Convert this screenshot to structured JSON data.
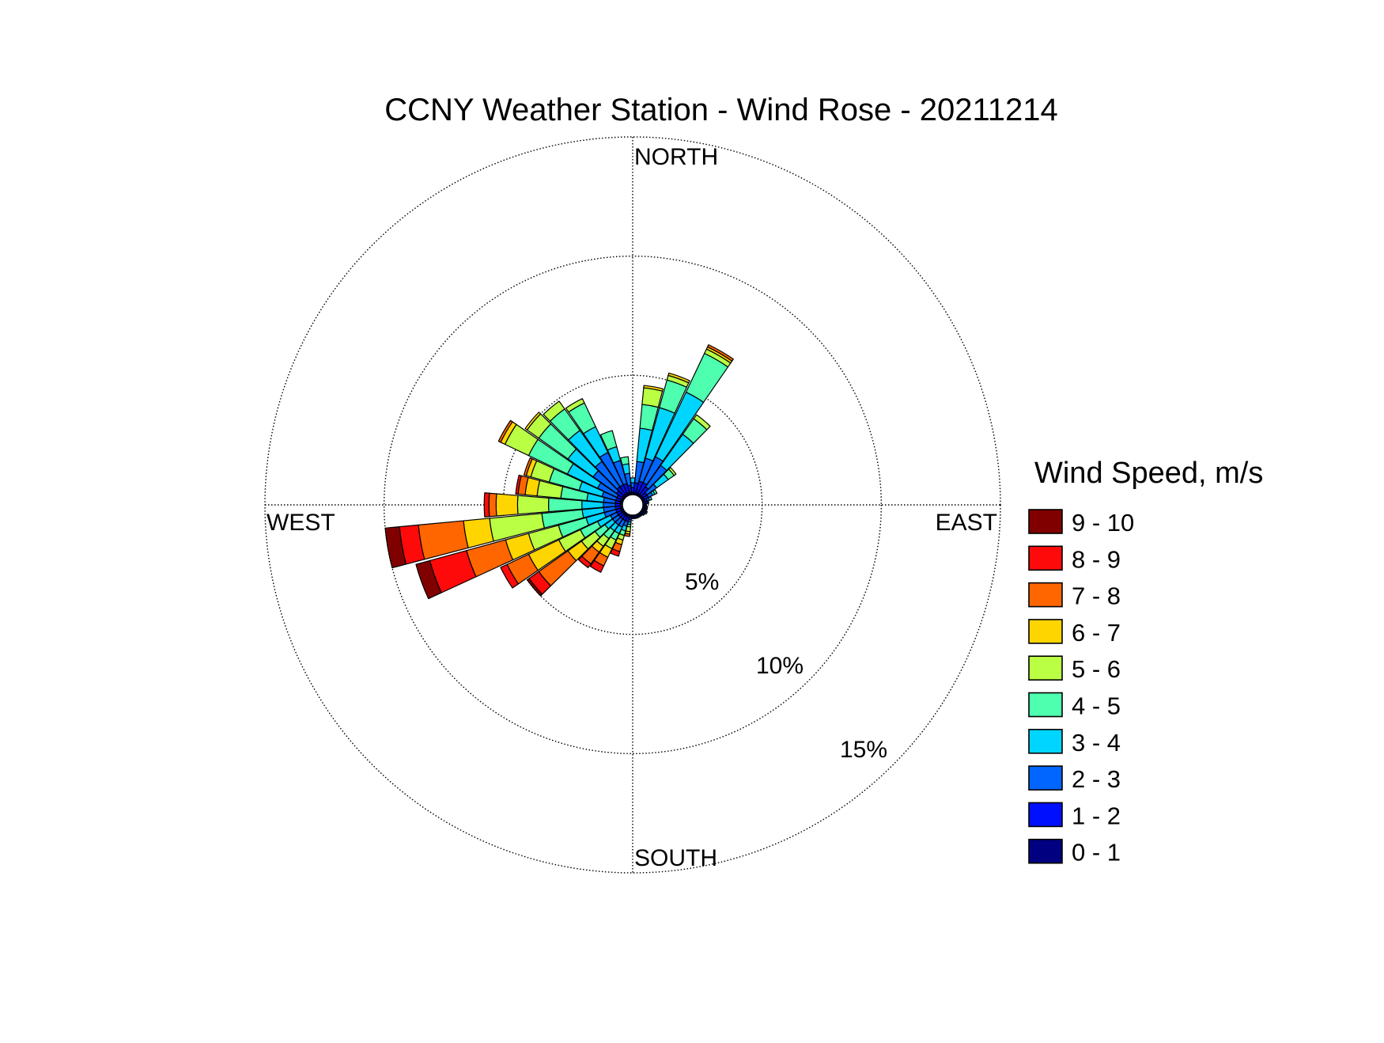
{
  "chart_data": {
    "type": "wind-rose",
    "title": "CCNY Weather Station - Wind Rose - 20211214",
    "directions": {
      "north": "NORTH",
      "south": "SOUTH",
      "east": "EAST",
      "west": "WEST"
    },
    "radial_ticks": [
      {
        "value": 5,
        "label": "5%"
      },
      {
        "value": 10,
        "label": "10%"
      },
      {
        "value": 15,
        "label": "15%"
      }
    ],
    "rmax": 15,
    "grid": true,
    "legend": {
      "title": "Wind Speed, m/s",
      "placement": "right",
      "bins": [
        {
          "label": "9 - 10",
          "color": "#800000"
        },
        {
          "label": "8 - 9",
          "color": "#ff0a0a"
        },
        {
          "label": "7 - 8",
          "color": "#ff6600"
        },
        {
          "label": "6 - 7",
          "color": "#ffd500"
        },
        {
          "label": "5 - 6",
          "color": "#bbff44"
        },
        {
          "label": "4 - 5",
          "color": "#4dffae"
        },
        {
          "label": "3 - 4",
          "color": "#00d5ff"
        },
        {
          "label": "2 - 3",
          "color": "#0066ff"
        },
        {
          "label": "1 - 2",
          "color": "#0010ff"
        },
        {
          "label": "0 - 1",
          "color": "#000080"
        }
      ]
    },
    "bin_order_inner_to_outer": [
      "0 - 1",
      "1 - 2",
      "2 - 3",
      "3 - 4",
      "4 - 5",
      "5 - 6",
      "6 - 7",
      "7 - 8",
      "8 - 9",
      "9 - 10"
    ],
    "sector_width_deg": 10,
    "sectors": [
      {
        "direction_deg": 10,
        "cumulative_pct": [
          0.1,
          0.5,
          1.4,
          2.8,
          3.8,
          4.5,
          4.6
        ]
      },
      {
        "direction_deg": 20,
        "cumulative_pct": [
          0.1,
          0.6,
          1.6,
          3.8,
          5.0,
          5.2,
          5.3
        ]
      },
      {
        "direction_deg": 30,
        "cumulative_pct": [
          0.1,
          0.6,
          1.8,
          4.8,
          6.6,
          6.8,
          6.9,
          7.0
        ]
      },
      {
        "direction_deg": 40,
        "cumulative_pct": [
          0.1,
          0.5,
          1.6,
          3.2,
          4.0,
          4.2
        ]
      },
      {
        "direction_deg": 50,
        "cumulative_pct": [
          0.1,
          0.3,
          0.8,
          1.4,
          1.7,
          1.8
        ]
      },
      {
        "direction_deg": 60,
        "cumulative_pct": [
          0.1,
          0.3,
          0.5,
          0.6,
          0.7
        ]
      },
      {
        "direction_deg": 70,
        "cumulative_pct": [
          0.1,
          0.2,
          0.3,
          0.4
        ]
      },
      {
        "direction_deg": 80,
        "cumulative_pct": [
          0.1,
          0.2,
          0.25
        ]
      },
      {
        "direction_deg": 90,
        "cumulative_pct": [
          0.1,
          0.15
        ]
      },
      {
        "direction_deg": 100,
        "cumulative_pct": [
          0.1,
          0.15,
          0.2
        ]
      },
      {
        "direction_deg": 110,
        "cumulative_pct": [
          0.1,
          0.15,
          0.2
        ]
      },
      {
        "direction_deg": 120,
        "cumulative_pct": [
          0.1,
          0.15,
          0.2,
          0.25
        ]
      },
      {
        "direction_deg": 130,
        "cumulative_pct": [
          0.1,
          0.15,
          0.2
        ]
      },
      {
        "direction_deg": 140,
        "cumulative_pct": [
          0.1,
          0.15
        ]
      },
      {
        "direction_deg": 150,
        "cumulative_pct": [
          0.1,
          0.15
        ]
      },
      {
        "direction_deg": 160,
        "cumulative_pct": [
          0.1,
          0.15
        ]
      },
      {
        "direction_deg": 170,
        "cumulative_pct": [
          0.1,
          0.15
        ]
      },
      {
        "direction_deg": 180,
        "cumulative_pct": [
          0.1,
          0.15
        ]
      },
      {
        "direction_deg": 190,
        "cumulative_pct": [
          0.1,
          0.2,
          0.3,
          0.4,
          0.5,
          0.7,
          0.8,
          0.9
        ]
      },
      {
        "direction_deg": 200,
        "cumulative_pct": [
          0.1,
          0.3,
          0.5,
          0.7,
          0.9,
          1.1,
          1.3,
          1.6,
          1.8
        ]
      },
      {
        "direction_deg": 210,
        "cumulative_pct": [
          0.1,
          0.3,
          0.6,
          0.9,
          1.2,
          1.6,
          2.0,
          2.4,
          2.7
        ]
      },
      {
        "direction_deg": 220,
        "cumulative_pct": [
          0.1,
          0.3,
          0.6,
          0.9,
          1.3,
          1.7,
          2.0,
          2.6,
          2.8
        ]
      },
      {
        "direction_deg": 230,
        "cumulative_pct": [
          0.1,
          0.3,
          0.6,
          1.0,
          1.5,
          2.2,
          2.9,
          4.4,
          4.9,
          5.0
        ]
      },
      {
        "direction_deg": 240,
        "cumulative_pct": [
          0.1,
          0.3,
          0.6,
          1.2,
          2.0,
          3.0,
          4.4,
          5.4,
          5.7
        ]
      },
      {
        "direction_deg": 250,
        "cumulative_pct": [
          0.1,
          0.3,
          0.8,
          1.6,
          2.8,
          4.1,
          5.1,
          6.8,
          8.4,
          9.0
        ]
      },
      {
        "direction_deg": 260,
        "cumulative_pct": [
          0.1,
          0.3,
          0.8,
          1.7,
          3.4,
          5.6,
          6.7,
          8.6,
          9.4,
          10.0
        ]
      },
      {
        "direction_deg": 270,
        "cumulative_pct": [
          0.1,
          0.3,
          0.8,
          1.7,
          3.1,
          4.4,
          5.3,
          5.6,
          5.8
        ]
      },
      {
        "direction_deg": 280,
        "cumulative_pct": [
          0.1,
          0.3,
          0.8,
          1.5,
          2.6,
          3.6,
          4.1,
          4.4,
          4.5
        ]
      },
      {
        "direction_deg": 290,
        "cumulative_pct": [
          0.1,
          0.3,
          0.9,
          1.9,
          3.2,
          4.0,
          4.2,
          4.3
        ]
      },
      {
        "direction_deg": 300,
        "cumulative_pct": [
          0.1,
          0.3,
          1.2,
          2.6,
          4.4,
          5.5,
          5.7,
          5.8
        ]
      },
      {
        "direction_deg": 310,
        "cumulative_pct": [
          0.1,
          0.4,
          1.6,
          2.9,
          4.4,
          5.0,
          5.1
        ]
      },
      {
        "direction_deg": 320,
        "cumulative_pct": [
          0.1,
          0.5,
          1.8,
          3.4,
          4.5,
          4.9
        ]
      },
      {
        "direction_deg": 330,
        "cumulative_pct": [
          0.1,
          0.5,
          2.0,
          3.2,
          4.3,
          4.5
        ]
      },
      {
        "direction_deg": 340,
        "cumulative_pct": [
          0.1,
          0.5,
          1.5,
          2.1,
          2.8
        ]
      },
      {
        "direction_deg": 350,
        "cumulative_pct": [
          0.1,
          0.4,
          0.9,
          1.3,
          1.6
        ]
      },
      {
        "direction_deg": 0,
        "cumulative_pct": [
          0.1,
          0.3,
          0.5,
          0.7
        ]
      }
    ]
  }
}
